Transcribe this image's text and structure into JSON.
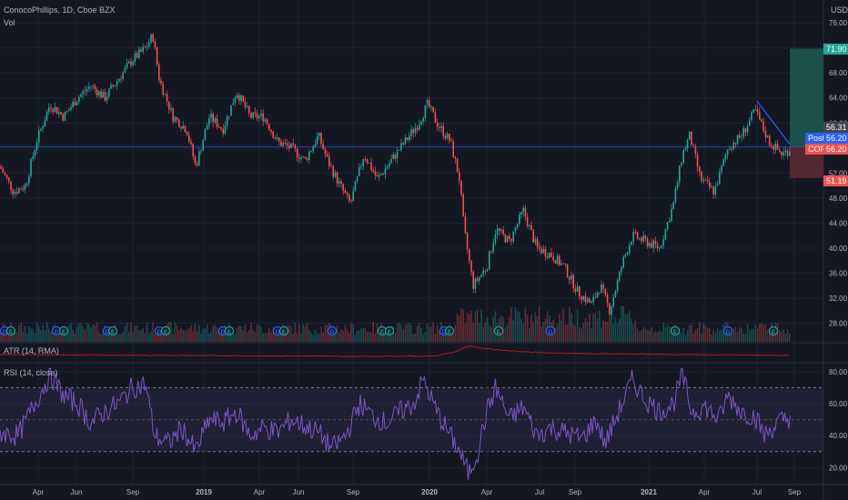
{
  "header": {
    "symbol_line": "ConocoPhillips, 1D, Cboe BZX",
    "volume_label": "Vol",
    "currency": "USD"
  },
  "indicators": {
    "atr_label": "ATR (14, RMA)",
    "rsi_label": "RSI (14, close)"
  },
  "price_tags": {
    "target": "71.90",
    "last": "56.31",
    "post_label": "Post",
    "post_value": "56.20",
    "cop_label": "COP",
    "cop_value": "56.20",
    "stop": "51.19"
  },
  "colors": {
    "background": "#131722",
    "up": "#26a69a",
    "down": "#ef5350",
    "rsi_line": "#7e57c2",
    "atr_line": "#b71c1c",
    "trendline": "#2962ff",
    "target_zone": "#1f5a55",
    "stop_zone": "#5c2a32"
  },
  "chart_data": {
    "type": "candlestick",
    "price_axis": {
      "ticks": [
        "76.00",
        "72.00",
        "68.00",
        "64.00",
        "60.00",
        "56.00",
        "52.00",
        "48.00",
        "44.00",
        "40.00",
        "36.00",
        "32.00",
        "28.00"
      ],
      "range": [
        25.0,
        78.5
      ]
    },
    "rsi_axis": {
      "ticks": [
        "80.00",
        "60.00",
        "40.00",
        "20.00"
      ],
      "upper_band": 70,
      "lower_band": 30
    },
    "x_axis": {
      "ticks": [
        "Apr",
        "Jun",
        "Sep",
        "2019",
        "Apr",
        "Jun",
        "Sep",
        "2020",
        "Apr",
        "Jul",
        "Sep",
        "2021",
        "Apr",
        "Jul",
        "Sep"
      ],
      "bold_ticks": [
        "2019",
        "2020",
        "2021"
      ]
    },
    "price_path": [
      [
        0,
        53
      ],
      [
        15,
        49
      ],
      [
        28,
        50
      ],
      [
        40,
        57
      ],
      [
        55,
        63
      ],
      [
        70,
        61
      ],
      [
        85,
        64
      ],
      [
        100,
        66
      ],
      [
        115,
        64
      ],
      [
        130,
        67
      ],
      [
        145,
        70
      ],
      [
        160,
        72
      ],
      [
        168,
        74
      ],
      [
        175,
        67
      ],
      [
        190,
        61
      ],
      [
        205,
        59
      ],
      [
        215,
        53
      ],
      [
        230,
        61
      ],
      [
        245,
        59
      ],
      [
        260,
        65
      ],
      [
        275,
        61
      ],
      [
        290,
        61
      ],
      [
        305,
        57
      ],
      [
        320,
        56
      ],
      [
        335,
        54
      ],
      [
        350,
        58
      ],
      [
        360,
        54
      ],
      [
        370,
        51
      ],
      [
        385,
        47
      ],
      [
        400,
        55
      ],
      [
        415,
        51
      ],
      [
        430,
        54
      ],
      [
        445,
        57
      ],
      [
        460,
        60
      ],
      [
        470,
        63
      ],
      [
        480,
        60
      ],
      [
        495,
        57
      ],
      [
        505,
        51
      ],
      [
        510,
        43
      ],
      [
        520,
        34
      ],
      [
        535,
        37
      ],
      [
        545,
        43
      ],
      [
        560,
        41
      ],
      [
        575,
        46
      ],
      [
        590,
        40
      ],
      [
        605,
        39
      ],
      [
        620,
        37
      ],
      [
        635,
        33
      ],
      [
        650,
        31
      ],
      [
        660,
        34
      ],
      [
        670,
        30
      ],
      [
        685,
        38
      ],
      [
        695,
        42
      ],
      [
        710,
        41
      ],
      [
        725,
        40
      ],
      [
        740,
        47
      ],
      [
        750,
        55
      ],
      [
        758,
        58
      ],
      [
        770,
        51
      ],
      [
        785,
        49
      ],
      [
        800,
        56
      ],
      [
        815,
        58
      ],
      [
        830,
        62
      ],
      [
        845,
        57
      ],
      [
        860,
        55
      ],
      [
        870,
        56
      ]
    ],
    "rsi_path": [
      [
        0,
        42
      ],
      [
        20,
        40
      ],
      [
        40,
        62
      ],
      [
        55,
        78
      ],
      [
        70,
        65
      ],
      [
        85,
        60
      ],
      [
        100,
        48
      ],
      [
        115,
        55
      ],
      [
        130,
        60
      ],
      [
        145,
        70
      ],
      [
        160,
        72
      ],
      [
        170,
        40
      ],
      [
        185,
        35
      ],
      [
        200,
        45
      ],
      [
        215,
        30
      ],
      [
        230,
        50
      ],
      [
        245,
        48
      ],
      [
        260,
        55
      ],
      [
        275,
        40
      ],
      [
        290,
        45
      ],
      [
        305,
        42
      ],
      [
        320,
        50
      ],
      [
        335,
        46
      ],
      [
        350,
        42
      ],
      [
        365,
        32
      ],
      [
        380,
        40
      ],
      [
        395,
        60
      ],
      [
        410,
        52
      ],
      [
        425,
        48
      ],
      [
        440,
        55
      ],
      [
        455,
        60
      ],
      [
        465,
        75
      ],
      [
        480,
        55
      ],
      [
        495,
        40
      ],
      [
        505,
        30
      ],
      [
        515,
        16
      ],
      [
        525,
        30
      ],
      [
        535,
        55
      ],
      [
        545,
        70
      ],
      [
        560,
        50
      ],
      [
        575,
        58
      ],
      [
        590,
        40
      ],
      [
        605,
        45
      ],
      [
        620,
        42
      ],
      [
        640,
        38
      ],
      [
        655,
        50
      ],
      [
        665,
        35
      ],
      [
        680,
        55
      ],
      [
        695,
        75
      ],
      [
        710,
        62
      ],
      [
        725,
        55
      ],
      [
        740,
        60
      ],
      [
        750,
        78
      ],
      [
        760,
        55
      ],
      [
        775,
        58
      ],
      [
        790,
        50
      ],
      [
        800,
        65
      ],
      [
        815,
        55
      ],
      [
        830,
        52
      ],
      [
        840,
        40
      ],
      [
        855,
        48
      ],
      [
        870,
        52
      ]
    ],
    "atr_path": [
      [
        0,
        1.6
      ],
      [
        100,
        1.5
      ],
      [
        200,
        1.4
      ],
      [
        300,
        1.3
      ],
      [
        400,
        1.2
      ],
      [
        480,
        1.3
      ],
      [
        500,
        2.2
      ],
      [
        515,
        3.5
      ],
      [
        530,
        3.0
      ],
      [
        560,
        2.4
      ],
      [
        600,
        2.0
      ],
      [
        650,
        1.8
      ],
      [
        700,
        1.7
      ],
      [
        750,
        1.6
      ],
      [
        800,
        1.5
      ],
      [
        870,
        1.4
      ]
    ],
    "event_markers": [
      "D",
      "E",
      "D",
      "E",
      "D",
      "E",
      "D",
      "E",
      "D",
      "E",
      "D",
      "E",
      "D",
      "E",
      "E",
      "D",
      "E",
      "E",
      "D",
      "E",
      "D",
      "E"
    ]
  }
}
